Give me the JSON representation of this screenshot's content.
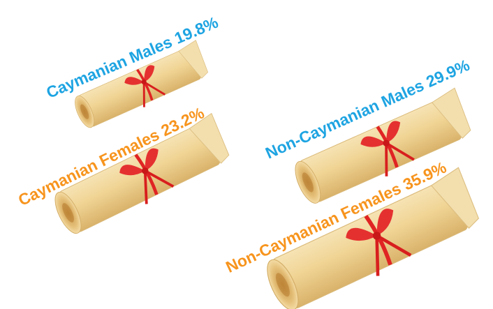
{
  "items": [
    {
      "label": "Caymanian Males 19.8%",
      "color": "#1ea4e2"
    },
    {
      "label": "Caymanian Females 23.2%",
      "color": "#f7941d"
    },
    {
      "label": "Non-Caymanian Males 29.9%",
      "color": "#1ea4e2"
    },
    {
      "label": "Non-Caymanian Females 35.9%",
      "color": "#f7941d"
    }
  ]
}
